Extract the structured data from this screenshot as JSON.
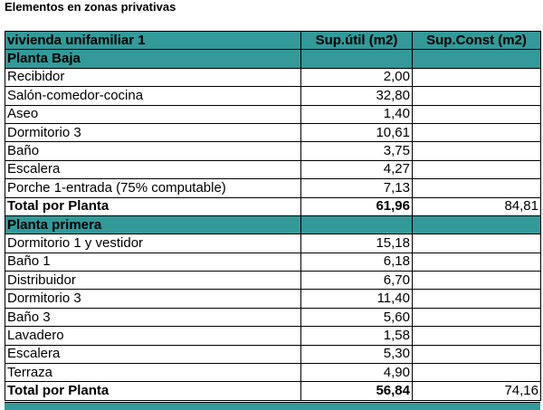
{
  "header": {
    "title": "Elementos en zonas privativas"
  },
  "table": {
    "columns": [
      "vivienda unifamiliar 1",
      "Sup.útil (m2)",
      "Sup.Const (m2)"
    ],
    "sections": [
      {
        "title": "Planta Baja",
        "rows": [
          [
            "Recibidor",
            "2,00"
          ],
          [
            "Salón-comedor-cocina",
            "32,80"
          ],
          [
            "Aseo",
            "1,40"
          ],
          [
            "Dormitorio 3",
            "10,61"
          ],
          [
            "Baño",
            "3,75"
          ],
          [
            "Escalera",
            "4,27"
          ],
          [
            "Porche 1-entrada (75% computable)",
            "7,13"
          ]
        ],
        "total": [
          "Total por Planta",
          "61,96",
          "84,81"
        ]
      },
      {
        "title": "Planta primera",
        "rows": [
          [
            "Dormitorio 1 y vestidor",
            "15,18"
          ],
          [
            "Baño 1",
            "6,18"
          ],
          [
            "Distribuidor",
            "6,70"
          ],
          [
            "Dormitorio 3",
            "11,40"
          ],
          [
            "Baño 3",
            "5,60"
          ],
          [
            "Lavadero",
            "1,58"
          ],
          [
            "Escalera",
            "5,30"
          ],
          [
            "Terraza",
            "4,90"
          ]
        ],
        "total": [
          "Total por Planta",
          "56,84",
          "74,16"
        ]
      }
    ]
  }
}
